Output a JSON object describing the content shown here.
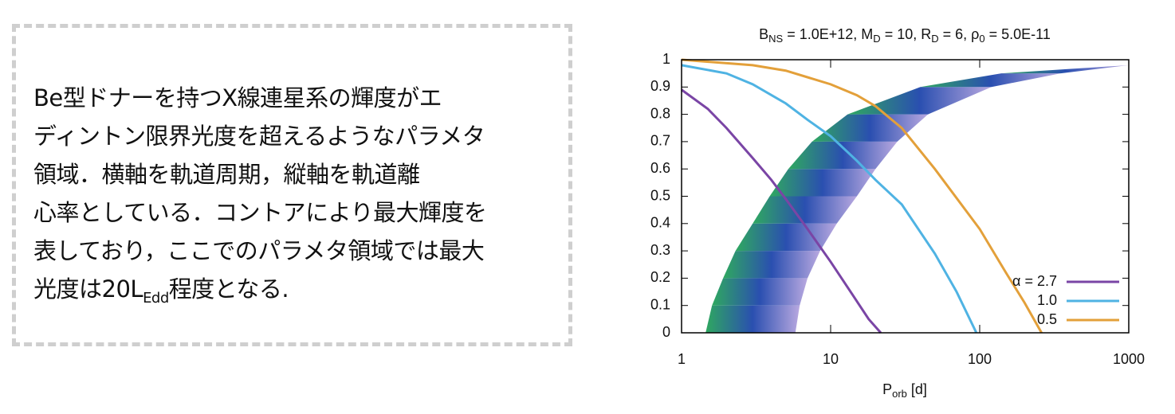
{
  "text_box": {
    "lines": [
      "Be型ドナーを持つX線連星系の輝度がエ",
      "ディントン限界光度を超えるようなパラメタ",
      "領域．横軸を軌道周期，縦軸を軌道離",
      "心率としている．コントアにより最大輝度を",
      "表しており，ここでのパラメタ領域では最大"
    ],
    "last_line": [
      "光度は20L",
      "Edd",
      "程度となる."
    ]
  },
  "chart_data": {
    "type": "line",
    "title_parts": [
      "B",
      "NS",
      " = 1.0E+12,  M",
      "D",
      " = 10,  R",
      "D",
      " = 6, ρ",
      "0",
      " = 5.0E-11"
    ],
    "xlabel_parts": [
      "P",
      "orb",
      " [d]"
    ],
    "log_x": true,
    "xlim": [
      1,
      1000
    ],
    "xticks": [
      1,
      10,
      100,
      1000
    ],
    "ylim": [
      0,
      1
    ],
    "yticks": [
      0,
      0.1,
      0.2,
      0.3,
      0.4,
      0.5,
      0.6,
      0.7,
      0.8,
      0.9,
      1
    ],
    "legend": "lower right",
    "band": {
      "y": [
        0,
        0.1,
        0.2,
        0.3,
        0.4,
        0.5,
        0.6,
        0.7,
        0.8,
        0.9,
        0.95,
        0.98
      ],
      "x_low": [
        1.45,
        1.6,
        1.9,
        2.3,
        3,
        3.9,
        5.2,
        7.5,
        13,
        40,
        140,
        1000
      ],
      "x_high": [
        5.8,
        6.2,
        7,
        8.5,
        11,
        15,
        20,
        28,
        45,
        120,
        350,
        1000
      ],
      "colors": [
        "#2fa860",
        "#2a4fb0",
        "#b8a8e0"
      ]
    },
    "series": [
      {
        "name": "α = 2.7",
        "color": "#7a45a5",
        "x": [
          1,
          1.5,
          2,
          3,
          4,
          5,
          7,
          10,
          14,
          18,
          21.7
        ],
        "values": [
          0.89,
          0.82,
          0.75,
          0.64,
          0.56,
          0.49,
          0.38,
          0.26,
          0.14,
          0.05,
          0
        ]
      },
      {
        "name": "1.0",
        "color": "#4fb3e3",
        "x": [
          1,
          2,
          3,
          5,
          7,
          10,
          15,
          20,
          30,
          50,
          70,
          95
        ],
        "values": [
          0.98,
          0.95,
          0.91,
          0.84,
          0.78,
          0.72,
          0.63,
          0.56,
          0.47,
          0.29,
          0.15,
          0
        ]
      },
      {
        "name": "0.5",
        "color": "#e3a03a",
        "x": [
          1,
          3,
          5,
          10,
          15,
          20,
          30,
          50,
          100,
          150,
          200,
          260
        ],
        "values": [
          1,
          0.98,
          0.96,
          0.91,
          0.87,
          0.83,
          0.75,
          0.6,
          0.38,
          0.22,
          0.11,
          0
        ]
      }
    ]
  }
}
